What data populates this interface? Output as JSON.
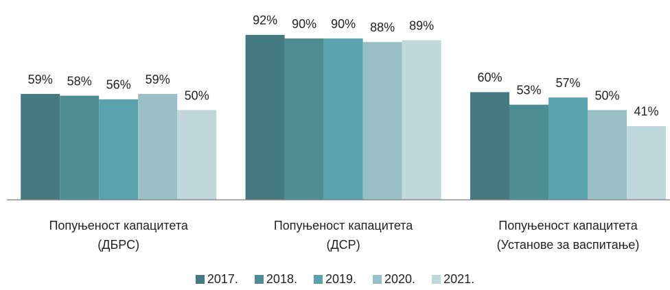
{
  "chart_data": {
    "type": "bar",
    "categories": [
      "Попуњеност капацитета\n(ДБРС)",
      "Попуњеност капацитета\n(ДСР)",
      "Попуњеност капацитета\n(Установе за васпитање)"
    ],
    "series": [
      {
        "name": "2017.",
        "color": "#43797f",
        "values": [
          59,
          92,
          60
        ],
        "value_labels": [
          "59%",
          "92%",
          "60%"
        ]
      },
      {
        "name": "2018.",
        "color": "#4e8c93",
        "values": [
          58,
          90,
          53
        ],
        "value_labels": [
          "58%",
          "90%",
          "53%"
        ]
      },
      {
        "name": "2019.",
        "color": "#5aa3ad",
        "values": [
          56,
          90,
          57
        ],
        "value_labels": [
          "56%",
          "90%",
          "57%"
        ]
      },
      {
        "name": "2020.",
        "color": "#98bfc5",
        "values": [
          59,
          88,
          50
        ],
        "value_labels": [
          "59%",
          "88%",
          "50%"
        ]
      },
      {
        "name": "2021.",
        "color": "#c0d7db",
        "values": [
          50,
          89,
          41
        ],
        "value_labels": [
          "50%",
          "89%",
          "41%"
        ]
      }
    ],
    "legend": "bottom"
  }
}
